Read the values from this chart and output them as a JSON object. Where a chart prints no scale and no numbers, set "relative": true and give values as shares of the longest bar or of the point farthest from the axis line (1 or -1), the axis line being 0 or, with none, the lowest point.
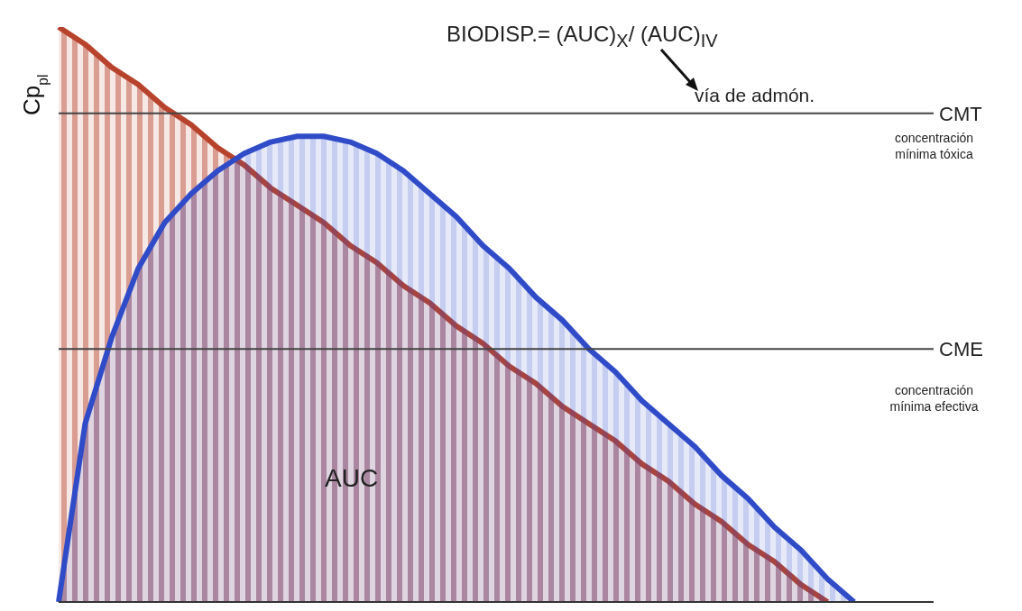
{
  "chart_data": {
    "type": "area",
    "relative": true,
    "ylabel": "Cp$_{pl}$",
    "categories": [
      null,
      null,
      null,
      null,
      null,
      null,
      null,
      null,
      null,
      null,
      null,
      null,
      null,
      null,
      null,
      null,
      null,
      null,
      null,
      null,
      null,
      null,
      null,
      null,
      null,
      null,
      null,
      null,
      null,
      null,
      null,
      null,
      null,
      null
    ],
    "series": [
      {
        "color": "#b8432c",
        "values": [
          1,
          0.97,
          0.93,
          0.9,
          0.86,
          0.83,
          0.79,
          0.76,
          0.72,
          0.69,
          0.66,
          0.62,
          0.59,
          0.55,
          0.52,
          0.48,
          0.45,
          0.41,
          0.38,
          0.34,
          0.31,
          0.28,
          0.24,
          0.21,
          0.17,
          0.14,
          0.1,
          0.07,
          0.03,
          0,
          null,
          null,
          null,
          null
        ]
      },
      {
        "color": "#2f4bc8",
        "values": [
          0,
          0.31,
          0.46,
          0.58,
          0.66,
          0.71,
          0.75,
          0.78,
          0.8,
          0.81,
          0.81,
          0.8,
          0.78,
          0.75,
          0.71,
          0.67,
          0.62,
          0.58,
          0.53,
          0.49,
          0.44,
          0.4,
          0.35,
          0.31,
          0.27,
          0.22,
          0.18,
          0.13,
          0.09,
          0.04,
          0,
          null,
          null,
          null
        ]
      }
    ],
    "ref_lines": [
      {
        "axis": "y",
        "value": 0.85,
        "label": "CMT",
        "color": "#444444"
      },
      {
        "axis": "y",
        "value": 0.44,
        "label": "CME",
        "color": "#444444"
      }
    ],
    "annotations": [
      "BIODISP.= (AUC)$_{X}$/ (AUC)$_{IV}$",
      "vía de admón.",
      "AUC",
      "concentración mínima tóxica",
      "concentración mínima efectiva"
    ]
  }
}
